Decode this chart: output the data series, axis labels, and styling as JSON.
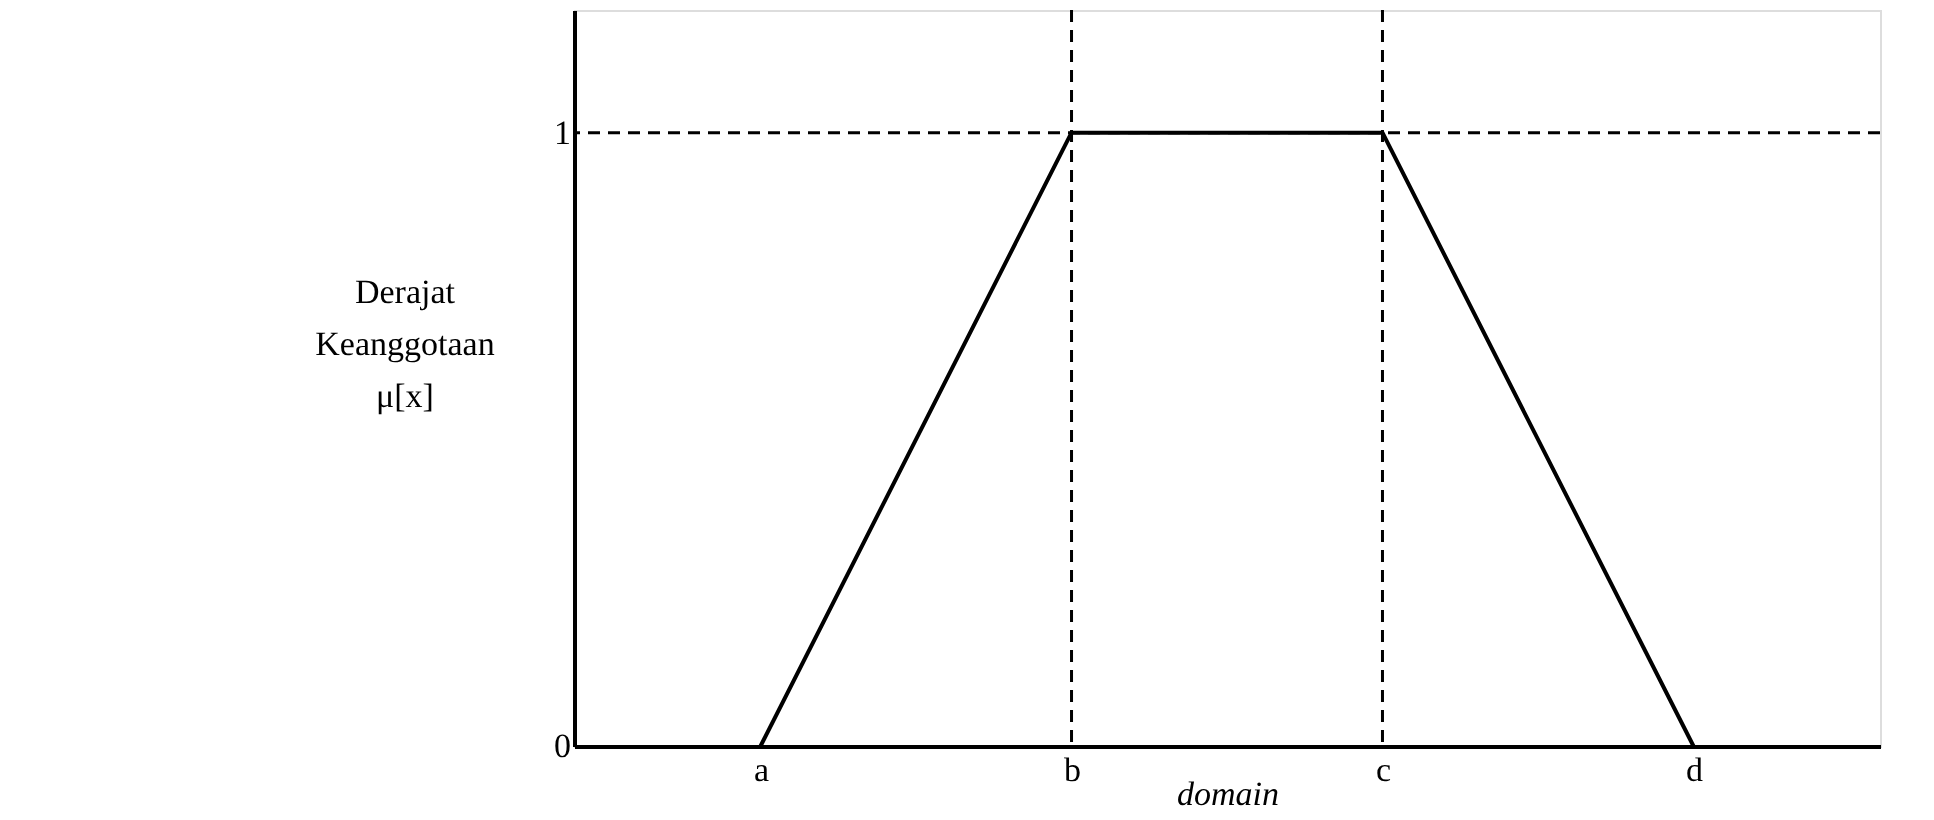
{
  "chart_data": {
    "type": "line",
    "xlabel": "domain",
    "ylabel": "Derajat Keanggotaan μ[x]",
    "categories": [
      "a",
      "b",
      "c",
      "d"
    ],
    "series": [
      {
        "color": "#000000",
        "values": [
          0,
          1,
          1,
          0
        ]
      }
    ],
    "ylim": [
      0,
      1.2
    ],
    "yticks": [
      0,
      1
    ],
    "ref_lines": [
      {
        "axis": "x",
        "value": "b",
        "line_style": "dashed",
        "color": "#000000"
      },
      {
        "axis": "x",
        "value": "c",
        "line_style": "dashed",
        "color": "#000000"
      },
      {
        "axis": "y",
        "value": 1,
        "line_style": "dashed",
        "color": "#000000"
      }
    ],
    "grid": false,
    "marker": "none",
    "line_style": "solid"
  }
}
